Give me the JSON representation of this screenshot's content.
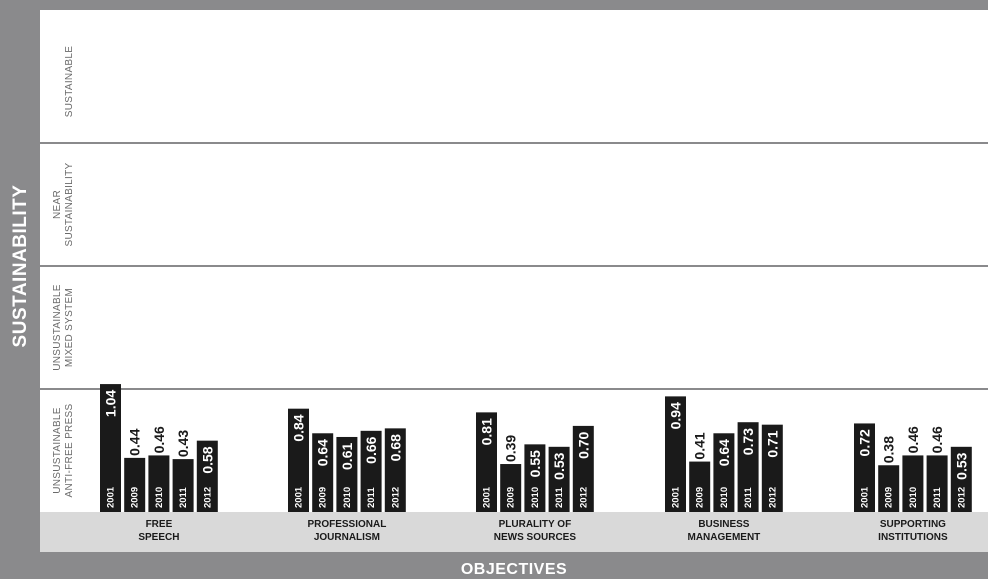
{
  "chart_data": {
    "type": "bar",
    "y_axis_title": "SUSTAINABILITY",
    "x_axis_title": "OBJECTIVES",
    "ylim": [
      0,
      4
    ],
    "bands": [
      {
        "lines": [
          "UNSUSTAINABLE",
          "ANTI-FREE PRESS"
        ]
      },
      {
        "lines": [
          "UNSUSTAINABLE",
          "MIXED SYSTEM"
        ]
      },
      {
        "lines": [
          "NEAR",
          "SUSTAINABILITY"
        ]
      },
      {
        "lines": [
          "SUSTAINABLE"
        ]
      }
    ],
    "categories": [
      {
        "lines": [
          "FREE",
          "SPEECH"
        ]
      },
      {
        "lines": [
          "PROFESSIONAL",
          "JOURNALISM"
        ]
      },
      {
        "lines": [
          "PLURALITY OF",
          "NEWS SOURCES"
        ]
      },
      {
        "lines": [
          "BUSINESS",
          "MANAGEMENT"
        ]
      },
      {
        "lines": [
          "SUPPORTING",
          "INSTITUTIONS"
        ]
      }
    ],
    "series": [
      {
        "name": "2001",
        "values": [
          1.04,
          0.84,
          0.81,
          0.94,
          0.72
        ],
        "labels": [
          "1.04",
          "0.84",
          "0.81",
          "0.94",
          "0.72"
        ]
      },
      {
        "name": "2009",
        "values": [
          0.44,
          0.64,
          0.39,
          0.41,
          0.38
        ],
        "labels": [
          "0.44",
          "0.64",
          "0.39",
          "0.41",
          "0.38"
        ]
      },
      {
        "name": "2010",
        "values": [
          0.46,
          0.61,
          0.55,
          0.64,
          0.46
        ],
        "labels": [
          "0.46",
          "0.61",
          "0.55",
          "0.64",
          "0.46"
        ]
      },
      {
        "name": "2011",
        "values": [
          0.43,
          0.66,
          0.53,
          0.73,
          0.46
        ],
        "labels": [
          "0.43",
          "0.66",
          "0.53",
          "0.73",
          "0.46"
        ]
      },
      {
        "name": "2012",
        "values": [
          0.58,
          0.68,
          0.7,
          0.71,
          0.53
        ],
        "labels": [
          "0.58",
          "0.68",
          "0.70",
          "0.71",
          "0.53"
        ]
      }
    ],
    "colors": {
      "frame": "#8a8a8c",
      "plot": "#ffffff",
      "category_band": "#d9d9d9",
      "bar": "#1a1a1a",
      "grid": "#8a8a8c"
    }
  }
}
